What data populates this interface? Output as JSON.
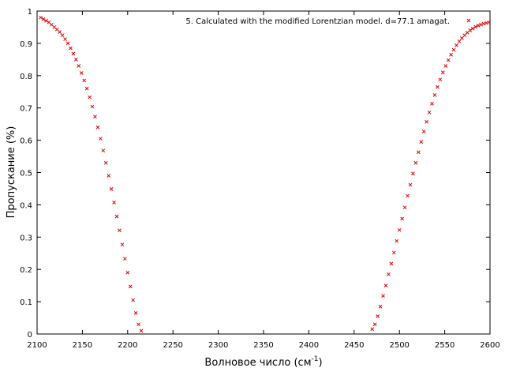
{
  "chart_data": {
    "type": "scatter",
    "xlabel": "Волновое число (см",
    "xlabel_sup": "-1",
    "xlabel_end": ")",
    "ylabel": "Пропускание (%)",
    "xlim": [
      2100,
      2600
    ],
    "ylim": [
      0,
      1
    ],
    "xticks": [
      2100,
      2150,
      2200,
      2250,
      2300,
      2350,
      2400,
      2450,
      2500,
      2550,
      2600
    ],
    "yticks": [
      0,
      0.1,
      0.2,
      0.3,
      0.4,
      0.5,
      0.6,
      0.7,
      0.8,
      0.9,
      1
    ],
    "ytick_labels": [
      "0",
      "0.1",
      "0.2",
      "0.3",
      "0.4",
      "0.5",
      "0.6",
      "0.7",
      "0.8",
      "0.9",
      "1"
    ],
    "grid": false,
    "legend_position": "top-right",
    "series": [
      {
        "name": "5. Calculated with the modified Lorentzian model. d=77.1 amagat.",
        "color": "#e00000",
        "marker": "x",
        "x": [
          2104,
          2107,
          2110,
          2113,
          2116,
          2119,
          2122,
          2125,
          2128,
          2131,
          2134,
          2137,
          2140,
          2143,
          2146,
          2149,
          2152,
          2155,
          2158,
          2161,
          2164,
          2167,
          2170,
          2173,
          2176,
          2179,
          2182,
          2185,
          2188,
          2191,
          2194,
          2197,
          2200,
          2203,
          2206,
          2209,
          2212,
          2215,
          2470,
          2473,
          2476,
          2479,
          2482,
          2485,
          2488,
          2491,
          2494,
          2497,
          2500,
          2503,
          2506,
          2509,
          2512,
          2515,
          2518,
          2521,
          2524,
          2527,
          2530,
          2533,
          2536,
          2539,
          2542,
          2545,
          2548,
          2551,
          2554,
          2557,
          2560,
          2563,
          2566,
          2569,
          2572,
          2575,
          2578,
          2581,
          2584,
          2587,
          2590,
          2593,
          2596,
          2599
        ],
        "y": [
          0.98,
          0.975,
          0.97,
          0.965,
          0.958,
          0.95,
          0.943,
          0.935,
          0.925,
          0.913,
          0.9,
          0.885,
          0.868,
          0.85,
          0.83,
          0.808,
          0.785,
          0.76,
          0.733,
          0.704,
          0.673,
          0.64,
          0.605,
          0.568,
          0.53,
          0.49,
          0.449,
          0.407,
          0.364,
          0.321,
          0.277,
          0.233,
          0.19,
          0.147,
          0.105,
          0.065,
          0.03,
          0.01,
          0.015,
          0.03,
          0.055,
          0.085,
          0.118,
          0.15,
          0.185,
          0.218,
          0.252,
          0.288,
          0.322,
          0.357,
          0.392,
          0.428,
          0.462,
          0.497,
          0.53,
          0.563,
          0.595,
          0.627,
          0.657,
          0.686,
          0.713,
          0.74,
          0.765,
          0.788,
          0.81,
          0.83,
          0.848,
          0.865,
          0.88,
          0.894,
          0.906,
          0.916,
          0.925,
          0.933,
          0.94,
          0.946,
          0.951,
          0.955,
          0.958,
          0.961,
          0.963,
          0.965
        ]
      }
    ]
  }
}
